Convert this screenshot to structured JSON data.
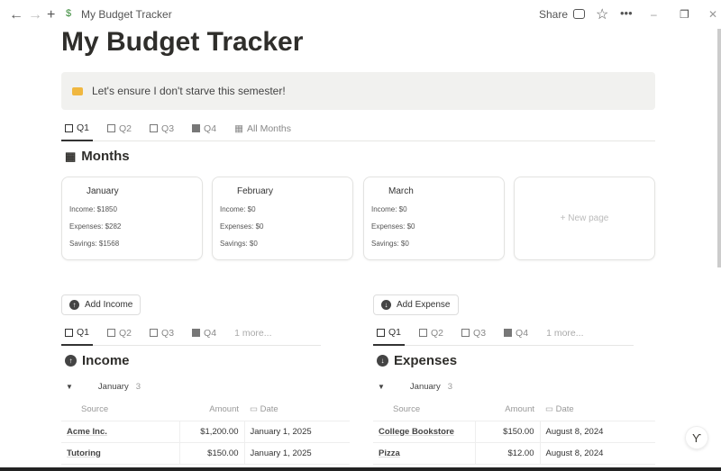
{
  "window": {
    "breadcrumb": "My Budget Tracker",
    "share": "Share",
    "page_icon": "money-emoji",
    "minimize": "–",
    "restore": "❐",
    "close": "✕"
  },
  "page": {
    "title": "My Budget Tracker",
    "callout": "Let's ensure I don't starve this semester!",
    "callout_icon": "credit-card-icon"
  },
  "top_tabs": [
    {
      "label": "Q1"
    },
    {
      "label": "Q2"
    },
    {
      "label": "Q3"
    },
    {
      "label": "Q4"
    },
    {
      "label": "All Months"
    }
  ],
  "months": {
    "heading": "Months",
    "cards": [
      {
        "name": "January",
        "income": "Income: $1850",
        "expenses": "Expenses: $282",
        "savings": "Savings: $1568"
      },
      {
        "name": "February",
        "income": "Income: $0",
        "expenses": "Expenses: $0",
        "savings": "Savings: $0"
      },
      {
        "name": "March",
        "income": "Income: $0",
        "expenses": "Expenses: $0",
        "savings": "Savings: $0"
      }
    ],
    "new_page": "+ New page"
  },
  "income": {
    "button": "Add Income",
    "tabs": [
      "Q1",
      "Q2",
      "Q3",
      "Q4",
      "1 more..."
    ],
    "heading": "Income",
    "group": "January",
    "count": "3",
    "columns": [
      "Source",
      "Amount",
      "Date"
    ],
    "rows": [
      {
        "source": "Acme Inc.",
        "amount": "$1,200.00",
        "date": "January 1, 2025"
      },
      {
        "source": "Tutoring",
        "amount": "$150.00",
        "date": "January 1, 2025"
      }
    ]
  },
  "expenses": {
    "button": "Add Expense",
    "tabs": [
      "Q1",
      "Q2",
      "Q3",
      "Q4",
      "1 more..."
    ],
    "heading": "Expenses",
    "group": "January",
    "count": "3",
    "columns": [
      "Source",
      "Amount",
      "Date"
    ],
    "rows": [
      {
        "source": "College Bookstore",
        "amount": "$150.00",
        "date": "August 8, 2024"
      },
      {
        "source": "Pizza",
        "amount": "$12.00",
        "date": "August 8, 2024"
      }
    ]
  }
}
